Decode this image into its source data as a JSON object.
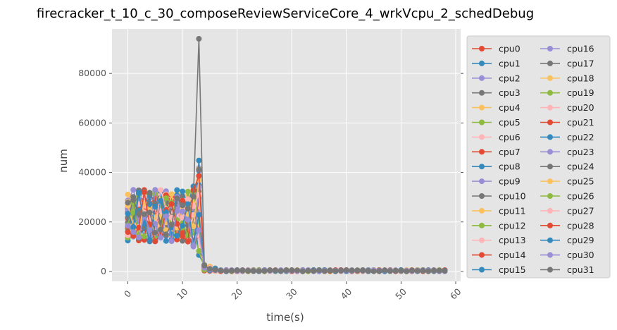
{
  "chart_data": {
    "type": "line",
    "title": "firecracker_t_10_c_30_composeReviewServiceCore_4_wrkVcpu_2_schedDebug",
    "xlabel": "time(s)",
    "ylabel": "num",
    "xlim": [
      -2.9,
      60.9
    ],
    "ylim": [
      -4000,
      98000
    ],
    "xticks": [
      0,
      10,
      20,
      30,
      40,
      50,
      60
    ],
    "yticks": [
      0,
      20000,
      40000,
      60000,
      80000
    ],
    "grid": true,
    "legend": {
      "placement": "right-outside",
      "columns": 2
    },
    "colors": [
      "#E24A33",
      "#348ABD",
      "#988ED5",
      "#777777",
      "#FBC15E",
      "#8EBA42",
      "#FFB5B8"
    ],
    "series": [
      {
        "name": "cpu0"
      },
      {
        "name": "cpu1"
      },
      {
        "name": "cpu2"
      },
      {
        "name": "cpu3"
      },
      {
        "name": "cpu4"
      },
      {
        "name": "cpu5"
      },
      {
        "name": "cpu6"
      },
      {
        "name": "cpu7"
      },
      {
        "name": "cpu8"
      },
      {
        "name": "cpu9"
      },
      {
        "name": "cpu10"
      },
      {
        "name": "cpu11"
      },
      {
        "name": "cpu12"
      },
      {
        "name": "cpu13"
      },
      {
        "name": "cpu14"
      },
      {
        "name": "cpu15"
      },
      {
        "name": "cpu16"
      },
      {
        "name": "cpu17"
      },
      {
        "name": "cpu18"
      },
      {
        "name": "cpu19"
      },
      {
        "name": "cpu20"
      },
      {
        "name": "cpu21"
      },
      {
        "name": "cpu22"
      },
      {
        "name": "cpu23"
      },
      {
        "name": "cpu24"
      },
      {
        "name": "cpu25"
      },
      {
        "name": "cpu26"
      },
      {
        "name": "cpu27"
      },
      {
        "name": "cpu28"
      },
      {
        "name": "cpu29"
      },
      {
        "name": "cpu30"
      },
      {
        "name": "cpu31"
      }
    ],
    "peaks": {
      "note_series": "cpu31",
      "x": 13,
      "y": 94000
    }
  }
}
